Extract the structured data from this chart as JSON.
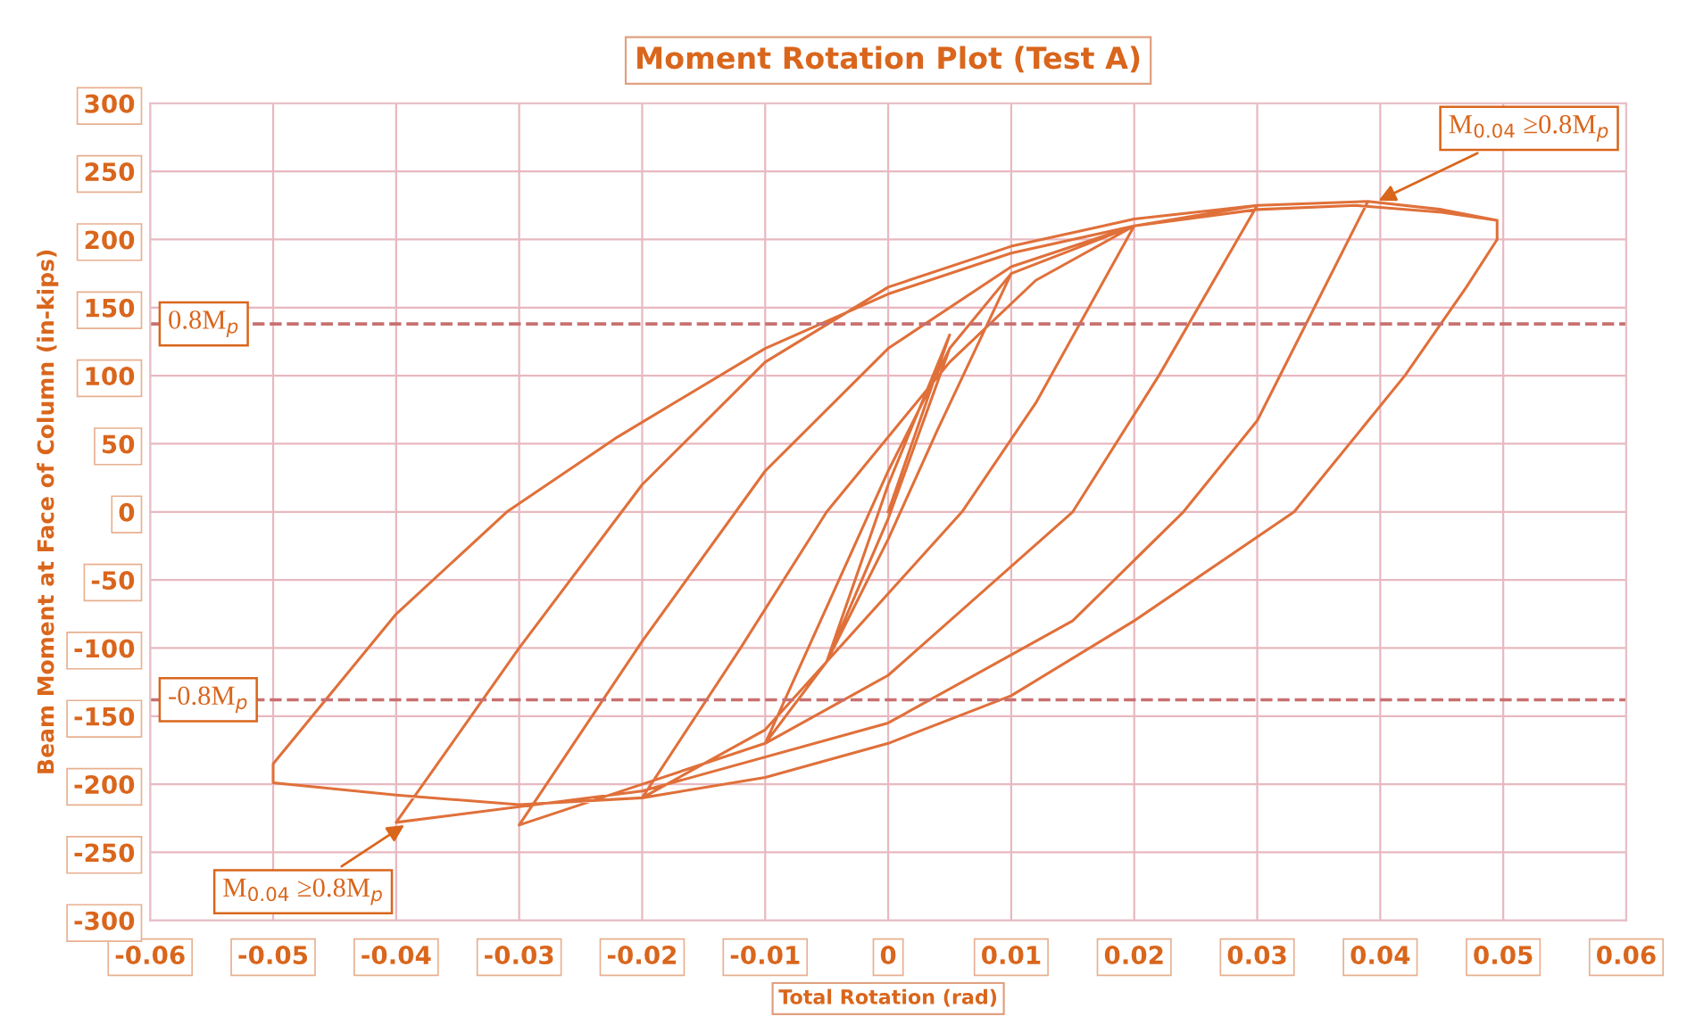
{
  "chart_data": {
    "type": "line",
    "title": "Moment Rotation Plot (Test A)",
    "xlabel": "Total Rotation (rad)",
    "ylabel": "Beam Moment at Face of Column (in-kips)",
    "xlim": [
      -0.06,
      0.06
    ],
    "xticks": [
      -0.06,
      -0.05,
      -0.04,
      -0.03,
      -0.02,
      -0.01,
      0,
      0.01,
      0.02,
      0.03,
      0.04,
      0.05,
      0.06
    ],
    "ylim": [
      -300,
      300
    ],
    "yticks": [
      -300,
      -250,
      -200,
      -150,
      -100,
      -50,
      0,
      50,
      100,
      150,
      200,
      250,
      300
    ],
    "grid": true,
    "legend": false,
    "marker": "none",
    "line_style": "solid",
    "series": [
      {
        "color": "#e0703a",
        "x": [
          0,
          0.005,
          0,
          -0.005,
          0,
          0.005,
          0.01,
          0.004,
          0,
          -0.005,
          -0.01,
          -0.005,
          0,
          0.005,
          0.01,
          0.02,
          0.012,
          0.006,
          -0.005,
          -0.01,
          -0.02,
          -0.012,
          -0.005,
          0.005,
          0.012,
          0.02,
          0.03,
          0.022,
          0.015,
          0,
          -0.01,
          -0.02,
          -0.03,
          -0.02,
          -0.01,
          0,
          0.01,
          0.02,
          0.03,
          0.039,
          0.03,
          0.024,
          0.015,
          0,
          -0.02,
          -0.04,
          -0.03,
          -0.02,
          -0.01,
          0,
          0.01,
          0.02,
          0.03,
          0.039,
          0.045,
          0.0495,
          0.0495,
          0.047,
          0.042,
          0.033,
          0.02,
          0.01,
          0,
          -0.01,
          -0.02,
          -0.03,
          -0.04,
          -0.05,
          -0.05,
          -0.045,
          -0.04,
          -0.031,
          -0.022,
          -0.01,
          0,
          0.01,
          0.02,
          0.03,
          0.038,
          0.045,
          0.0495
        ],
        "values": [
          0,
          130,
          20,
          -110,
          -5,
          120,
          175,
          60,
          -20,
          -110,
          -170,
          -70,
          30,
          120,
          175,
          210,
          80,
          0,
          -110,
          -160,
          -210,
          -100,
          0,
          110,
          170,
          210,
          225,
          100,
          0,
          -120,
          -170,
          -200,
          -230,
          -95,
          30,
          120,
          180,
          210,
          225,
          228,
          67,
          0,
          -80,
          -155,
          -205,
          -228,
          -100,
          20,
          110,
          165,
          195,
          215,
          225,
          228,
          222,
          214,
          200,
          165,
          100,
          0,
          -80,
          -135,
          -170,
          -195,
          -210,
          -215,
          -208,
          -199,
          -185,
          -130,
          -75,
          0,
          55,
          120,
          160,
          190,
          210,
          222,
          225,
          220,
          214
        ]
      }
    ],
    "ref_lines": [
      {
        "axis": "y",
        "value": 138,
        "label": "0.8M$_{p}$",
        "color": "#c87070",
        "line_style": "dashed"
      },
      {
        "axis": "y",
        "value": -138,
        "label": "-0.8M$_{p}$",
        "color": "#c87070",
        "line_style": "dashed"
      }
    ],
    "annotations": [
      {
        "text": "M$_{0.04}$ ≥0.8M$_{p}$",
        "x": 0.0395,
        "y": 227
      },
      {
        "text": "M$_{0.04}$ ≥0.8M$_{p}$",
        "x": -0.039,
        "y": -228
      }
    ]
  }
}
